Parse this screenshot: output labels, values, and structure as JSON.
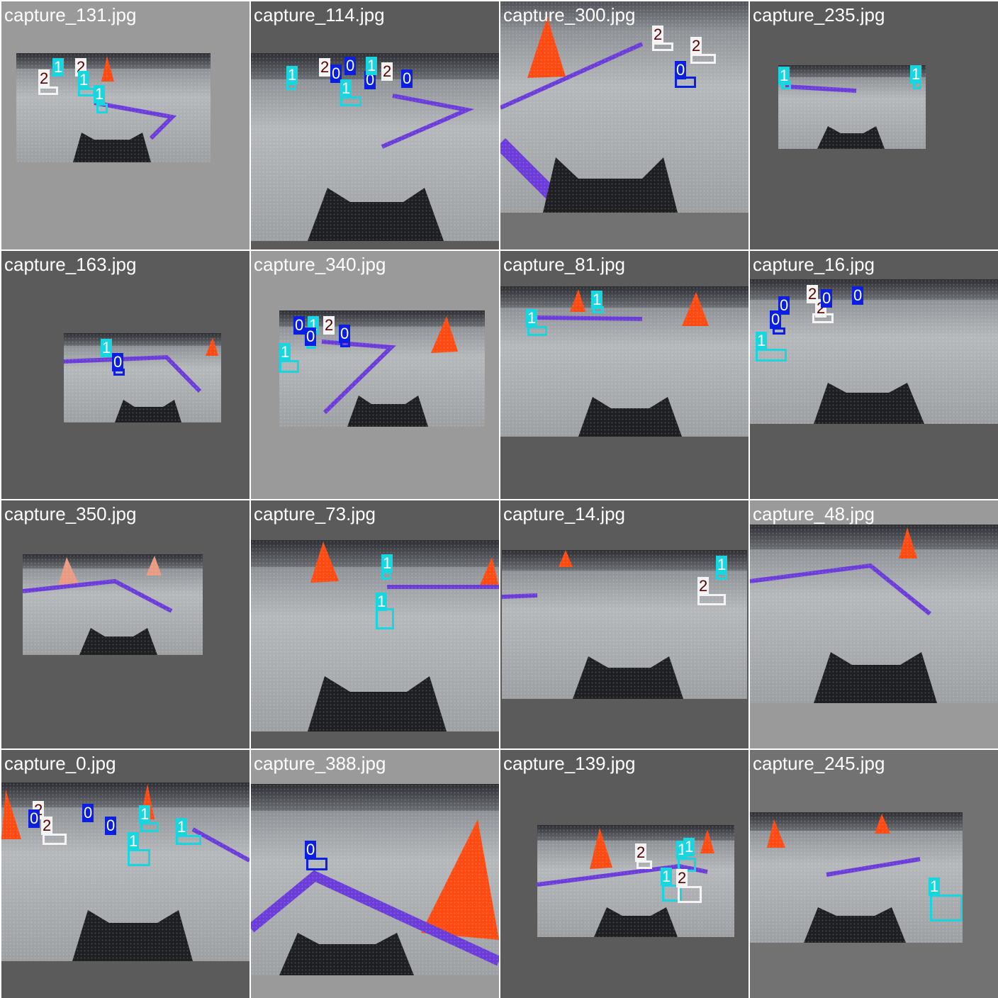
{
  "grid": {
    "tiles": [
      {
        "caption": "capture_131.jpg",
        "labels": [
          "2",
          "1",
          "2",
          "1",
          "1"
        ]
      },
      {
        "caption": "capture_114.jpg",
        "labels": [
          "1",
          "2",
          "0",
          "0",
          "1",
          "0",
          "2",
          "0",
          "1"
        ]
      },
      {
        "caption": "capture_300.jpg",
        "labels": [
          "2",
          "2",
          "0"
        ]
      },
      {
        "caption": "capture_235.jpg",
        "labels": [
          "1",
          "1"
        ]
      },
      {
        "caption": "capture_163.jpg",
        "labels": [
          "1",
          "0"
        ]
      },
      {
        "caption": "capture_340.jpg",
        "labels": [
          "0",
          "1",
          "0",
          "2",
          "0",
          "1"
        ]
      },
      {
        "caption": "capture_81.jpg",
        "labels": [
          "1",
          "1"
        ]
      },
      {
        "caption": "capture_16.jpg",
        "labels": [
          "2",
          "2",
          "0",
          "0",
          "0",
          "0",
          "1"
        ]
      },
      {
        "caption": "capture_350.jpg",
        "labels": []
      },
      {
        "caption": "capture_73.jpg",
        "labels": [
          "1",
          "1"
        ]
      },
      {
        "caption": "capture_14.jpg",
        "labels": [
          "1",
          "2"
        ]
      },
      {
        "caption": "capture_48.jpg",
        "labels": []
      },
      {
        "caption": "capture_0.jpg",
        "labels": [
          "2",
          "0",
          "2",
          "0",
          "0",
          "1",
          "1",
          "1"
        ]
      },
      {
        "caption": "capture_388.jpg",
        "labels": [
          "0"
        ]
      },
      {
        "caption": "capture_139.jpg",
        "labels": [
          "2",
          "1",
          "1",
          "1",
          "2"
        ]
      },
      {
        "caption": "capture_245.jpg",
        "labels": [
          "1"
        ]
      }
    ]
  },
  "colors": {
    "class_0": "#0b1fe0",
    "class_1": "#18d6e0",
    "class_2": "#f4f4f4",
    "cone": "#ff4a12",
    "tape": "#6b3cd8"
  }
}
